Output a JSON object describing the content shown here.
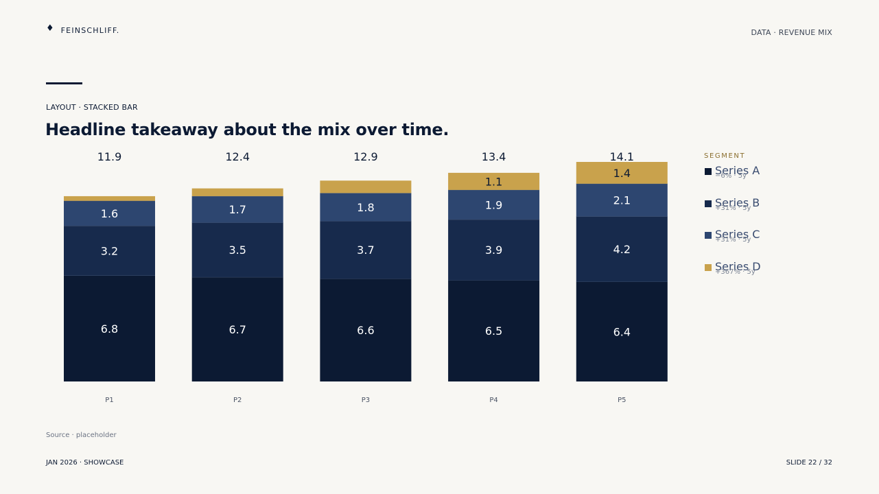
{
  "header": {
    "brand_mark": "♦",
    "brand_name": "FEINSCHLIFF.",
    "section": "DATA · REVENUE MIX"
  },
  "eyebrow": "LAYOUT · STACKED BAR",
  "headline": "Headline takeaway about the mix over time.",
  "legend": {
    "title": "SEGMENT",
    "items": [
      {
        "label": "Series A",
        "sub": "−6% · 5y",
        "color": "#0c1a33"
      },
      {
        "label": "Series B",
        "sub": "+31% · 5y",
        "color": "#172a4c"
      },
      {
        "label": "Series C",
        "sub": "+31% · 5y",
        "color": "#2d4670"
      },
      {
        "label": "Series D",
        "sub": "+367% · 5y",
        "color": "#c9a24c"
      }
    ]
  },
  "chart_data": {
    "type": "bar",
    "stacked": true,
    "categories": [
      "P1",
      "P2",
      "P3",
      "P4",
      "P5"
    ],
    "totals": [
      "11.9",
      "12.4",
      "12.9",
      "13.4",
      "14.1"
    ],
    "series": [
      {
        "name": "Series A",
        "values": [
          6.8,
          6.7,
          6.6,
          6.5,
          6.4
        ],
        "color": "#0c1a33"
      },
      {
        "name": "Series B",
        "values": [
          3.2,
          3.5,
          3.7,
          3.9,
          4.2
        ],
        "color": "#172a4c"
      },
      {
        "name": "Series C",
        "values": [
          1.6,
          1.7,
          1.8,
          1.9,
          2.1
        ],
        "color": "#2d4670"
      },
      {
        "name": "Series D",
        "values": [
          0.3,
          0.5,
          0.8,
          1.1,
          1.4
        ],
        "color": "#c9a24c"
      }
    ],
    "data_labels": [
      [
        "6.8",
        "6.7",
        "6.6",
        "6.5",
        "6.4"
      ],
      [
        "3.2",
        "3.5",
        "3.7",
        "3.9",
        "4.2"
      ],
      [
        "1.6",
        "1.7",
        "1.8",
        "1.9",
        "2.1"
      ],
      [
        "",
        "",
        "",
        "1.1",
        "1.4"
      ]
    ],
    "ylim": [
      0,
      14.1
    ],
    "grid": false,
    "legend_position": "right"
  },
  "footer": {
    "source": "Source · placeholder",
    "left": "JAN 2026 · SHOWCASE",
    "right": "SLIDE 22 / 32"
  }
}
